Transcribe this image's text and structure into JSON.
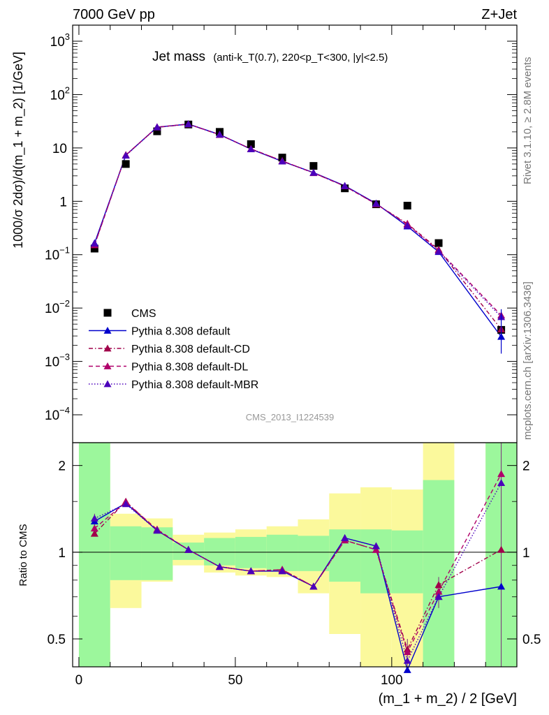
{
  "header": {
    "left": "7000 GeV pp",
    "right": "Z+Jet"
  },
  "side_labels": {
    "rivet": "Rivet 3.1.10, ≥ 2.8M events",
    "mcplots": "mcplots.cern.ch [arXiv:1306.3436]"
  },
  "watermark": "CMS_2013_I1224539",
  "colors": {
    "data": "#000000",
    "default": "#0000cc",
    "cd": "#a0004a",
    "dl": "#b0006a",
    "mbr": "#4b00bb",
    "band_inner": "#9cf79c",
    "band_outer": "#fbf99c"
  },
  "chart_data": [
    {
      "type": "scatter",
      "title": "Jet mass",
      "title_detail": "(anti-k_T(0.7), 220<p_T<300, |y|<2.5)",
      "ylabel": "1000/σ 2dσ)/d(m_1 + m_2) [1/GeV]",
      "yscale": "log",
      "ylim": [
        3e-05,
        2000
      ],
      "xlim": [
        -2,
        140
      ],
      "y_ticks": [
        "10^-4",
        "10^-3",
        "10^-2",
        "10^-1",
        "1",
        "10",
        "10^2",
        "10^3"
      ],
      "legend_position": "bottom-left",
      "x": [
        5,
        15,
        25,
        35,
        45,
        55,
        65,
        75,
        85,
        95,
        105,
        115,
        135
      ],
      "series": [
        {
          "name": "CMS",
          "marker": "square",
          "values": [
            0.13,
            5.0,
            20.5,
            27.5,
            20.0,
            11.8,
            6.6,
            4.6,
            1.75,
            0.88,
            0.83,
            0.165,
            0.0039
          ]
        },
        {
          "name": "Pythia 8.308 default",
          "line": "solid",
          "values": [
            0.165,
            7.3,
            24.5,
            28.0,
            17.8,
            9.5,
            5.6,
            3.45,
            1.95,
            0.91,
            0.34,
            0.113,
            0.0029
          ]
        },
        {
          "name": "Pythia 8.308 default-CD",
          "line": "dashdot",
          "values": [
            0.152,
            7.4,
            24.3,
            27.8,
            17.6,
            9.6,
            5.7,
            3.4,
            1.92,
            0.89,
            0.38,
            0.125,
            0.004
          ]
        },
        {
          "name": "Pythia 8.308 default-DL",
          "line": "dashed",
          "values": [
            0.152,
            7.3,
            24.6,
            28.1,
            17.7,
            9.6,
            5.7,
            3.42,
            1.92,
            0.89,
            0.37,
            0.12,
            0.0073
          ]
        },
        {
          "name": "Pythia 8.308 default-MBR",
          "line": "dotted",
          "values": [
            0.162,
            7.2,
            24.4,
            28.0,
            17.8,
            9.5,
            5.6,
            3.44,
            1.94,
            0.91,
            0.35,
            0.115,
            0.0068
          ]
        }
      ]
    },
    {
      "type": "line",
      "ylabel": "Ratio to CMS",
      "xlabel": "(m_1 + m_2) / 2 [GeV]",
      "yscale": "log",
      "ylim": [
        0.4,
        2.4
      ],
      "xlim": [
        -2,
        140
      ],
      "x_ticks": [
        "0",
        "50",
        "100"
      ],
      "y_ticks": [
        "0.5",
        "1",
        "2"
      ],
      "x": [
        5,
        15,
        25,
        35,
        45,
        55,
        65,
        75,
        85,
        95,
        105,
        115,
        135
      ],
      "bin_edges": [
        0,
        10,
        20,
        30,
        40,
        50,
        60,
        70,
        80,
        90,
        100,
        110,
        120,
        130,
        140
      ],
      "band_inner": [
        [
          0.4,
          2.4
        ],
        [
          0.8,
          1.23
        ],
        [
          0.8,
          1.22
        ],
        [
          0.94,
          1.08
        ],
        [
          0.9,
          1.12
        ],
        [
          0.88,
          1.13
        ],
        [
          0.86,
          1.15
        ],
        [
          0.86,
          1.14
        ],
        [
          0.79,
          1.2
        ],
        [
          0.72,
          1.2
        ],
        [
          0.72,
          1.19
        ],
        [
          0.4,
          1.78
        ],
        [
          1.0,
          1.0
        ],
        [
          0.4,
          2.4
        ]
      ],
      "band_outer": [
        [
          0.4,
          2.4
        ],
        [
          0.64,
          1.36
        ],
        [
          0.79,
          1.31
        ],
        [
          0.9,
          1.15
        ],
        [
          0.85,
          1.17
        ],
        [
          0.83,
          1.2
        ],
        [
          0.82,
          1.23
        ],
        [
          0.72,
          1.3
        ],
        [
          0.52,
          1.6
        ],
        [
          0.4,
          1.68
        ],
        [
          0.4,
          1.65
        ],
        [
          0.4,
          2.4
        ],
        [
          1.0,
          1.0
        ],
        [
          0.4,
          2.4
        ]
      ],
      "series": [
        {
          "name": "Pythia 8.308 default",
          "values": [
            1.28,
            1.48,
            1.19,
            1.02,
            0.89,
            0.86,
            0.86,
            0.76,
            1.12,
            1.05,
            0.39,
            0.7,
            0.76
          ]
        },
        {
          "name": "Pythia 8.308 default-CD",
          "values": [
            1.16,
            1.5,
            1.19,
            1.02,
            0.89,
            0.86,
            0.87,
            0.76,
            1.1,
            1.02,
            0.46,
            0.77,
            1.02
          ]
        },
        {
          "name": "Pythia 8.308 default-DL",
          "values": [
            1.21,
            1.49,
            1.2,
            1.02,
            0.89,
            0.86,
            0.87,
            0.76,
            1.1,
            1.02,
            0.45,
            0.73,
            1.87
          ]
        },
        {
          "name": "Pythia 8.308 default-MBR",
          "values": [
            1.31,
            1.47,
            1.19,
            1.02,
            0.89,
            0.86,
            0.86,
            0.76,
            1.12,
            1.05,
            0.42,
            0.7,
            1.74
          ]
        }
      ]
    }
  ]
}
